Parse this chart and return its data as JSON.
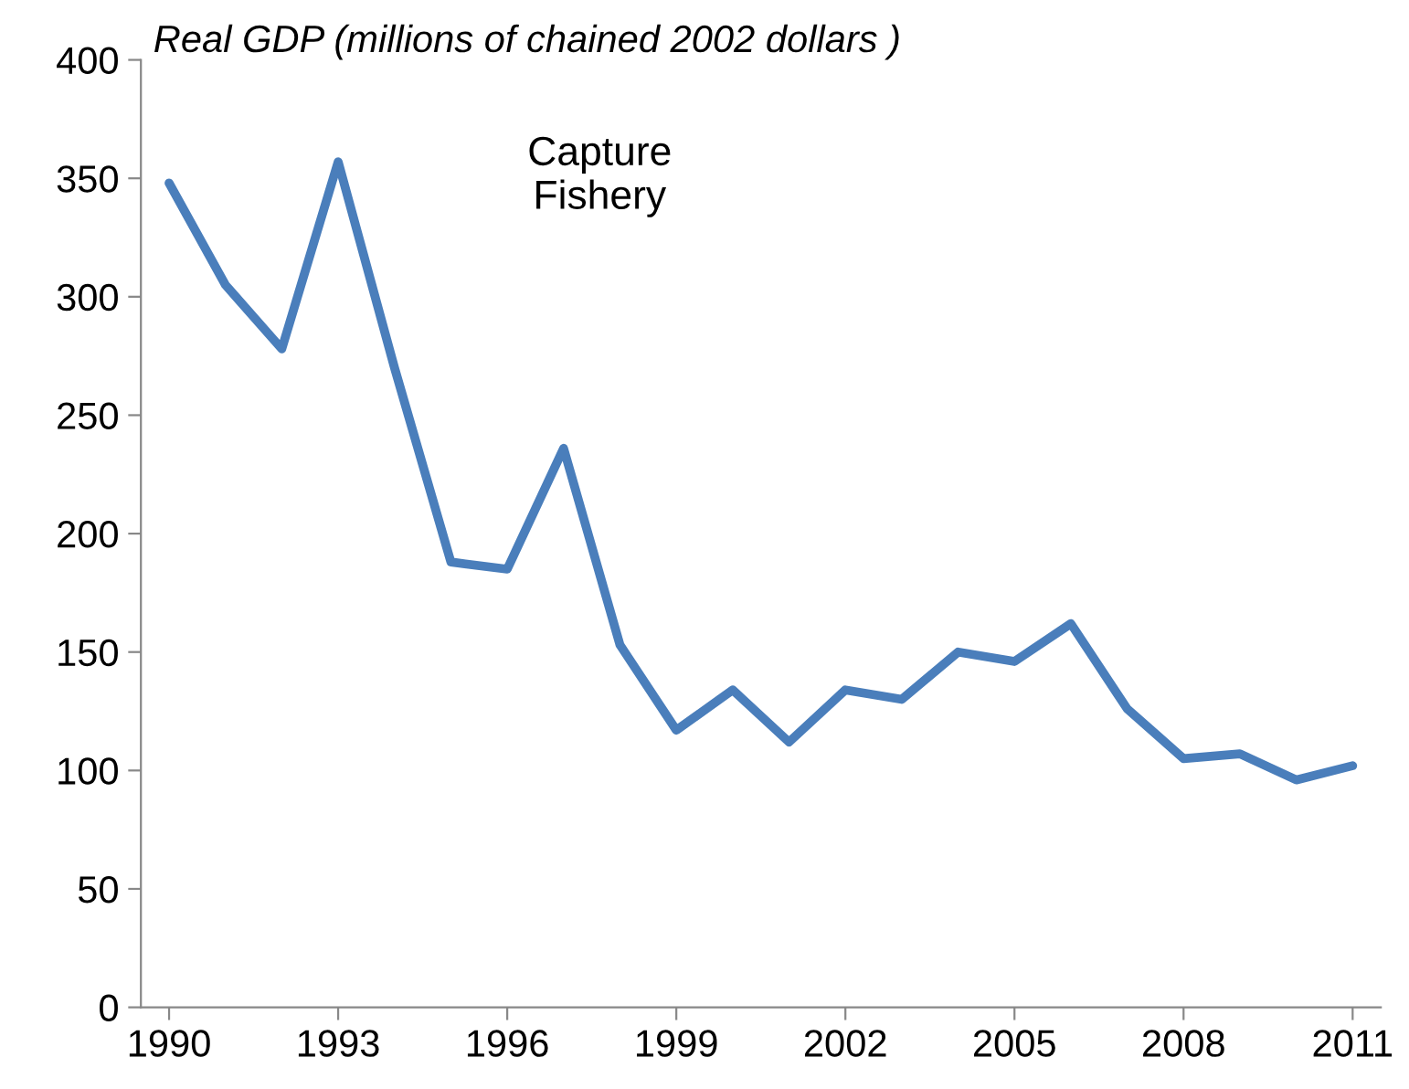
{
  "chart_data": {
    "type": "line",
    "title": "Real GDP (millions of chained 2002 dollars )",
    "annotations": [
      "Capture\nFishery"
    ],
    "x": [
      1990,
      1991,
      1992,
      1993,
      1994,
      1995,
      1996,
      1997,
      1998,
      1999,
      2000,
      2001,
      2002,
      2003,
      2004,
      2005,
      2006,
      2007,
      2008,
      2009,
      2010,
      2011
    ],
    "series": [
      {
        "color": "#4a7ebb",
        "values": [
          348,
          305,
          278,
          357,
          270,
          188,
          185,
          236,
          153,
          117,
          134,
          112,
          134,
          130,
          150,
          146,
          162,
          126,
          105,
          107,
          96,
          102
        ]
      }
    ],
    "xlim": [
      1989.5,
      2011.5
    ],
    "xticks": [
      1990,
      1993,
      1996,
      1999,
      2002,
      2005,
      2008,
      2011
    ],
    "ylim": [
      0,
      400
    ],
    "yticks": [
      0,
      50,
      100,
      150,
      200,
      250,
      300,
      350,
      400
    ],
    "grid": false,
    "legend": false,
    "marker": "none",
    "line_style": "solid"
  }
}
